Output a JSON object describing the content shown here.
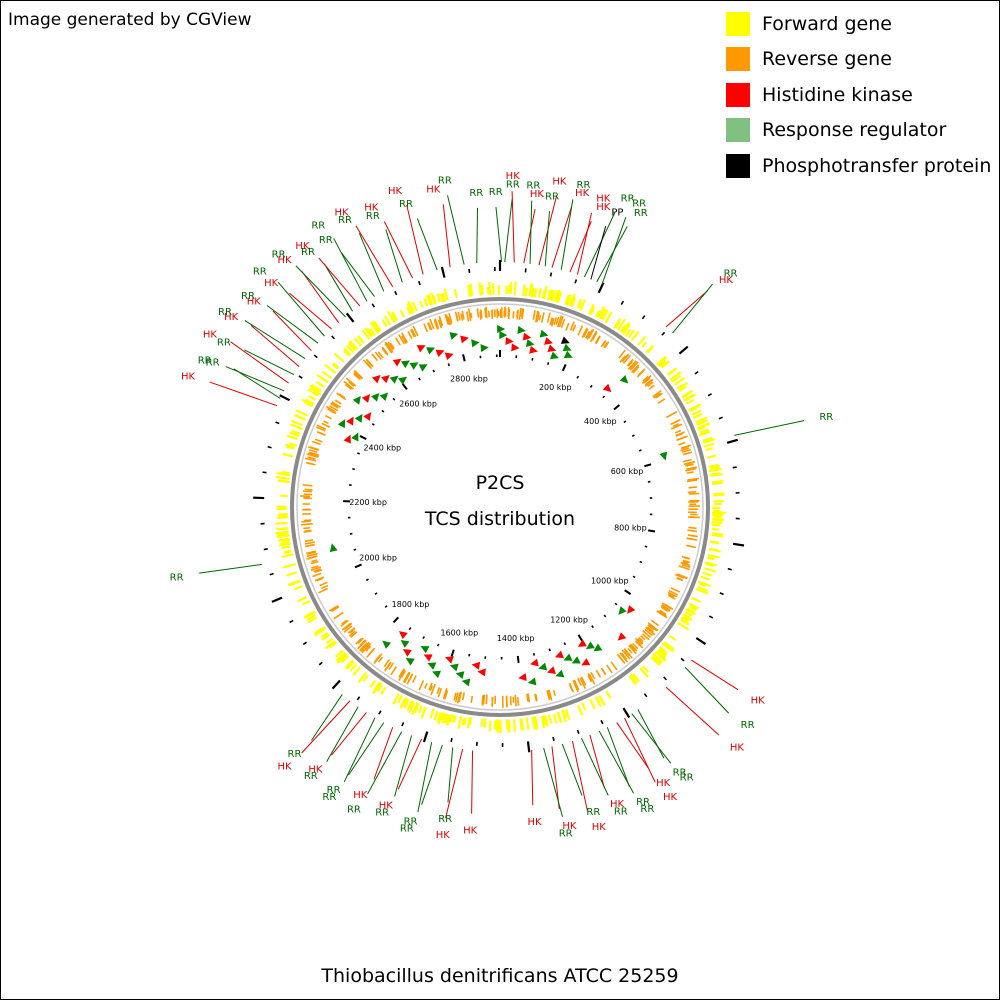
{
  "header": {
    "credit": "Image generated by CGView"
  },
  "legend": [
    {
      "label": "Forward gene",
      "color": "#ffff00"
    },
    {
      "label": "Reverse gene",
      "color": "#ff9900"
    },
    {
      "label": "Histidine kinase",
      "color": "#ff0000"
    },
    {
      "label": "Response regulator",
      "color": "#80c080"
    },
    {
      "label": "Phosphotransfer protein",
      "color": "#000000"
    }
  ],
  "center": {
    "line1": "P2CS",
    "line2": "TCS distribution"
  },
  "footer": {
    "species": "Thiobacillus denitrificans ATCC 25259"
  },
  "chart_data": {
    "type": "circular-genome-map",
    "genome_length_kbp": 2910,
    "tick_labels": [
      "200 kbp",
      "400 kbp",
      "600 kbp",
      "800 kbp",
      "1000 kbp",
      "1200 kbp",
      "1400 kbp",
      "1600 kbp",
      "1800 kbp",
      "2000 kbp",
      "2200 kbp",
      "2400 kbp",
      "2600 kbp",
      "2800 kbp"
    ],
    "label_colors": {
      "HK": "#dd0000",
      "RR": "#006600",
      "PP": "#000000"
    },
    "features": [
      {
        "label": "RR",
        "kbp": 3
      },
      {
        "label": "RR",
        "kbp": 9
      },
      {
        "label": "HK",
        "kbp": 27
      },
      {
        "label": "HK",
        "kbp": 45
      },
      {
        "label": "RR",
        "kbp": 57
      },
      {
        "label": "HK",
        "kbp": 74
      },
      {
        "label": "RR",
        "kbp": 86
      },
      {
        "label": "HK",
        "kbp": 99
      },
      {
        "label": "RR",
        "kbp": 117
      },
      {
        "label": "HK",
        "kbp": 134
      },
      {
        "label": "HK",
        "kbp": 149
      },
      {
        "label": "RR",
        "kbp": 163
      },
      {
        "label": "PP",
        "kbp": 176
      },
      {
        "label": "RR",
        "kbp": 188
      },
      {
        "label": "RR",
        "kbp": 199
      },
      {
        "label": "HK",
        "kbp": 345
      },
      {
        "label": "RR",
        "kbp": 362
      },
      {
        "label": "RR",
        "kbp": 590
      },
      {
        "label": "HK",
        "kbp": 1040
      },
      {
        "label": "RR",
        "kbp": 1058
      },
      {
        "label": "HK",
        "kbp": 1110
      },
      {
        "label": "RR",
        "kbp": 1178
      },
      {
        "label": "RR",
        "kbp": 1192
      },
      {
        "label": "HK",
        "kbp": 1208
      },
      {
        "label": "HK",
        "kbp": 1225
      },
      {
        "label": "RR",
        "kbp": 1245
      },
      {
        "label": "RR",
        "kbp": 1262
      },
      {
        "label": "HK",
        "kbp": 1281
      },
      {
        "label": "RR",
        "kbp": 1298
      },
      {
        "label": "HK",
        "kbp": 1316
      },
      {
        "label": "RR",
        "kbp": 1336
      },
      {
        "label": "HK",
        "kbp": 1356
      },
      {
        "label": "RR",
        "kbp": 1372
      },
      {
        "label": "HK",
        "kbp": 1395
      },
      {
        "label": "HK",
        "kbp": 1507
      },
      {
        "label": "HK",
        "kbp": 1526
      },
      {
        "label": "RR",
        "kbp": 1545
      },
      {
        "label": "RR",
        "kbp": 1565
      },
      {
        "label": "RR",
        "kbp": 1586
      },
      {
        "label": "HK",
        "kbp": 1606
      },
      {
        "label": "RR",
        "kbp": 1626
      },
      {
        "label": "RR",
        "kbp": 1646
      },
      {
        "label": "HK",
        "kbp": 1665
      },
      {
        "label": "RR",
        "kbp": 1684
      },
      {
        "label": "RR",
        "kbp": 1703
      },
      {
        "label": "HK",
        "kbp": 1722
      },
      {
        "label": "RR",
        "kbp": 1741
      },
      {
        "label": "HK",
        "kbp": 1760
      },
      {
        "label": "RR",
        "kbp": 1779
      },
      {
        "label": "RR",
        "kbp": 2073
      },
      {
        "label": "HK",
        "kbp": 2380
      },
      {
        "label": "RR",
        "kbp": 2395
      },
      {
        "label": "RR",
        "kbp": 2411
      },
      {
        "label": "HK",
        "kbp": 2428
      },
      {
        "label": "RR",
        "kbp": 2447
      },
      {
        "label": "HK",
        "kbp": 2465
      },
      {
        "label": "RR",
        "kbp": 2484
      },
      {
        "label": "HK",
        "kbp": 2503
      },
      {
        "label": "RR",
        "kbp": 2522
      },
      {
        "label": "RR",
        "kbp": 2540
      },
      {
        "label": "HK",
        "kbp": 2559
      },
      {
        "label": "HK",
        "kbp": 2577
      },
      {
        "label": "RR",
        "kbp": 2594
      },
      {
        "label": "RR",
        "kbp": 2611
      },
      {
        "label": "HK",
        "kbp": 2628
      },
      {
        "label": "RR",
        "kbp": 2644
      },
      {
        "label": "RR",
        "kbp": 2661
      },
      {
        "label": "RR",
        "kbp": 2681
      },
      {
        "label": "HK",
        "kbp": 2700
      },
      {
        "label": "RR",
        "kbp": 2720
      },
      {
        "label": "HK",
        "kbp": 2741
      },
      {
        "label": "HK",
        "kbp": 2762
      },
      {
        "label": "RR",
        "kbp": 2790
      },
      {
        "label": "HK",
        "kbp": 2815
      },
      {
        "label": "RR",
        "kbp": 2842
      },
      {
        "label": "RR",
        "kbp": 2866
      }
    ]
  }
}
